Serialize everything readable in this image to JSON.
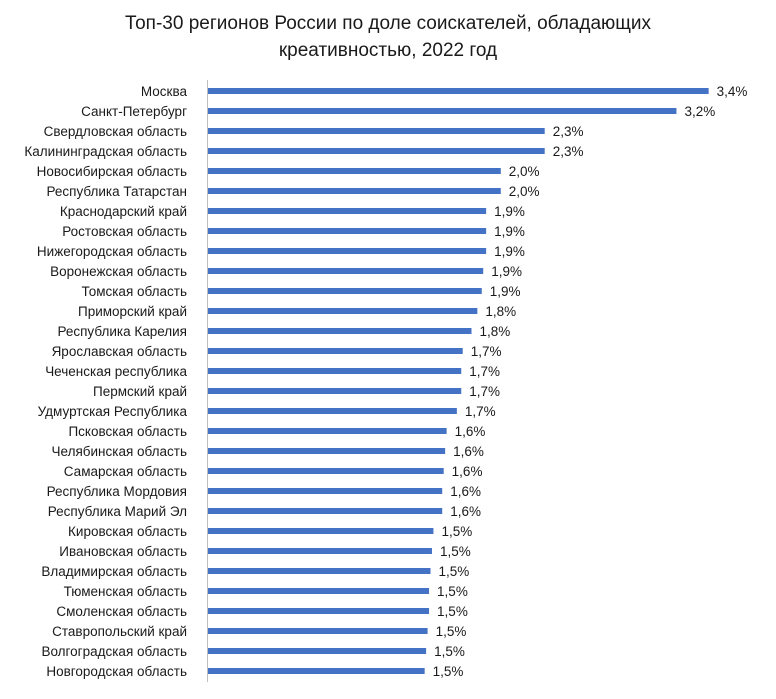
{
  "chart_data": {
    "type": "bar",
    "orientation": "horizontal",
    "title_lines": [
      "Топ-30 регионов России по доле соискателей, обладающих",
      "креативностью, 2022 год"
    ],
    "categories": [
      "Москва",
      "Санкт-Петербург",
      "Свердловская область",
      "Калининградская область",
      "Новосибирская область",
      "Республика Татарстан",
      "Краснодарский край",
      "Ростовская область",
      "Нижегородская область",
      "Воронежская область",
      "Томская область",
      "Приморский край",
      "Республика Карелия",
      "Ярославская область",
      "Чеченская республика",
      "Пермский край",
      "Удмуртская Республика",
      "Псковская область",
      "Челябинская область",
      "Самарская область",
      "Республика Мордовия",
      "Республика Марий Эл",
      "Кировская область",
      "Ивановская область",
      "Владимирская область",
      "Тюменская область",
      "Смоленская область",
      "Ставропольский край",
      "Волгоградская область",
      "Новгородская область"
    ],
    "values": [
      3.42,
      3.2,
      2.3,
      2.3,
      2.0,
      2.0,
      1.9,
      1.9,
      1.9,
      1.88,
      1.87,
      1.84,
      1.8,
      1.74,
      1.73,
      1.73,
      1.7,
      1.63,
      1.62,
      1.61,
      1.6,
      1.6,
      1.54,
      1.53,
      1.52,
      1.51,
      1.51,
      1.5,
      1.49,
      1.48
    ],
    "value_labels": [
      "3,4%",
      "3,2%",
      "2,3%",
      "2,3%",
      "2,0%",
      "2,0%",
      "1,9%",
      "1,9%",
      "1,9%",
      "1,9%",
      "1,9%",
      "1,8%",
      "1,8%",
      "1,7%",
      "1,7%",
      "1,7%",
      "1,7%",
      "1,6%",
      "1,6%",
      "1,6%",
      "1,6%",
      "1,6%",
      "1,5%",
      "1,5%",
      "1,5%",
      "1,5%",
      "1,5%",
      "1,5%",
      "1,5%",
      "1,5%"
    ],
    "xlim": [
      0,
      3.6
    ],
    "unit": "%",
    "grid": false,
    "legend": "none",
    "bar_color": "#4472C4",
    "axis_color": "#BFBFBF"
  }
}
